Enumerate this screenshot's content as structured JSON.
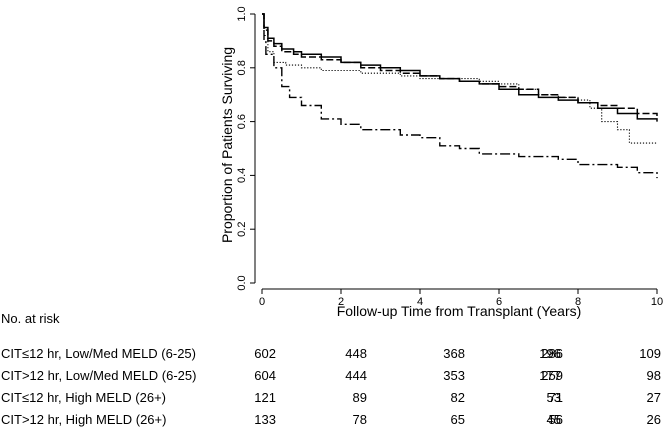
{
  "chart_data": {
    "type": "line",
    "ylabel": "Proportion of Patients Surviving",
    "xlabel": "Follow-up Time from Transplant (Years)",
    "xlim": [
      0,
      10
    ],
    "ylim": [
      0,
      1
    ],
    "x_ticks": [
      "0",
      "2",
      "4",
      "6",
      "8",
      "10"
    ],
    "y_ticks": [
      "0.0",
      "0.2",
      "0.4",
      "0.6",
      "0.8",
      "1.0"
    ],
    "grid": false,
    "series": [
      {
        "line_style": "solid",
        "points": [
          [
            0,
            1.0
          ],
          [
            0.05,
            0.95
          ],
          [
            0.15,
            0.91
          ],
          [
            0.3,
            0.89
          ],
          [
            0.5,
            0.87
          ],
          [
            0.8,
            0.86
          ],
          [
            1.0,
            0.85
          ],
          [
            1.5,
            0.84
          ],
          [
            2.0,
            0.82
          ],
          [
            2.5,
            0.81
          ],
          [
            3.0,
            0.8
          ],
          [
            3.5,
            0.79
          ],
          [
            4.0,
            0.77
          ],
          [
            4.5,
            0.76
          ],
          [
            5.0,
            0.75
          ],
          [
            5.5,
            0.74
          ],
          [
            6.0,
            0.72
          ],
          [
            6.5,
            0.7
          ],
          [
            7.0,
            0.69
          ],
          [
            7.5,
            0.68
          ],
          [
            8.0,
            0.67
          ],
          [
            8.5,
            0.65
          ],
          [
            9.0,
            0.63
          ],
          [
            9.5,
            0.61
          ],
          [
            10.0,
            0.6
          ]
        ]
      },
      {
        "line_style": "dashed",
        "points": [
          [
            0,
            1.0
          ],
          [
            0.05,
            0.94
          ],
          [
            0.15,
            0.9
          ],
          [
            0.3,
            0.88
          ],
          [
            0.5,
            0.86
          ],
          [
            0.8,
            0.85
          ],
          [
            1.0,
            0.84
          ],
          [
            1.5,
            0.83
          ],
          [
            2.0,
            0.82
          ],
          [
            2.5,
            0.8
          ],
          [
            3.0,
            0.79
          ],
          [
            3.5,
            0.78
          ],
          [
            4.0,
            0.77
          ],
          [
            4.5,
            0.76
          ],
          [
            5.0,
            0.75
          ],
          [
            5.5,
            0.74
          ],
          [
            6.0,
            0.73
          ],
          [
            6.5,
            0.72
          ],
          [
            7.0,
            0.7
          ],
          [
            7.5,
            0.69
          ],
          [
            8.0,
            0.67
          ],
          [
            8.5,
            0.66
          ],
          [
            9.0,
            0.65
          ],
          [
            9.5,
            0.63
          ],
          [
            10.0,
            0.62
          ]
        ]
      },
      {
        "line_style": "dotted",
        "points": [
          [
            0,
            1.0
          ],
          [
            0.05,
            0.92
          ],
          [
            0.15,
            0.86
          ],
          [
            0.3,
            0.82
          ],
          [
            0.6,
            0.81
          ],
          [
            1.0,
            0.8
          ],
          [
            1.5,
            0.79
          ],
          [
            2.0,
            0.79
          ],
          [
            2.5,
            0.78
          ],
          [
            3.0,
            0.78
          ],
          [
            3.5,
            0.77
          ],
          [
            4.0,
            0.76
          ],
          [
            4.5,
            0.76
          ],
          [
            5.0,
            0.76
          ],
          [
            5.5,
            0.75
          ],
          [
            6.0,
            0.74
          ],
          [
            6.5,
            0.72
          ],
          [
            7.0,
            0.7
          ],
          [
            7.5,
            0.69
          ],
          [
            8.0,
            0.68
          ],
          [
            8.3,
            0.65
          ],
          [
            8.6,
            0.6
          ],
          [
            9.0,
            0.57
          ],
          [
            9.3,
            0.52
          ],
          [
            10.0,
            0.52
          ]
        ]
      },
      {
        "line_style": "dash-dot",
        "points": [
          [
            0,
            1.0
          ],
          [
            0.05,
            0.9
          ],
          [
            0.1,
            0.85
          ],
          [
            0.3,
            0.8
          ],
          [
            0.5,
            0.73
          ],
          [
            0.7,
            0.69
          ],
          [
            1.0,
            0.66
          ],
          [
            1.5,
            0.61
          ],
          [
            2.0,
            0.59
          ],
          [
            2.5,
            0.57
          ],
          [
            3.0,
            0.57
          ],
          [
            3.5,
            0.55
          ],
          [
            4.0,
            0.54
          ],
          [
            4.5,
            0.51
          ],
          [
            5.0,
            0.5
          ],
          [
            5.5,
            0.48
          ],
          [
            6.0,
            0.48
          ],
          [
            6.5,
            0.47
          ],
          [
            7.0,
            0.47
          ],
          [
            7.5,
            0.46
          ],
          [
            8.0,
            0.44
          ],
          [
            8.5,
            0.44
          ],
          [
            9.0,
            0.43
          ],
          [
            9.5,
            0.41
          ],
          [
            10.0,
            0.39
          ]
        ]
      }
    ]
  },
  "risk_table": {
    "header": "No. at risk",
    "rows": [
      {
        "label": "CIT≤12 hr, Low/Med MELD (6-25)",
        "values": [
          "602",
          "448",
          "368",
          "286",
          "196",
          "109"
        ]
      },
      {
        "label": "CIT>12 hr, Low/Med MELD (6-25)",
        "values": [
          "604",
          "444",
          "353",
          "259",
          "177",
          "98"
        ]
      },
      {
        "label": "CIT≤12 hr, High MELD (26+)",
        "values": [
          "121",
          "89",
          "82",
          "71",
          "53",
          "27"
        ]
      },
      {
        "label": "CIT>12 hr, High MELD (26+)",
        "values": [
          "133",
          "78",
          "65",
          "56",
          "45",
          "26"
        ]
      }
    ]
  }
}
